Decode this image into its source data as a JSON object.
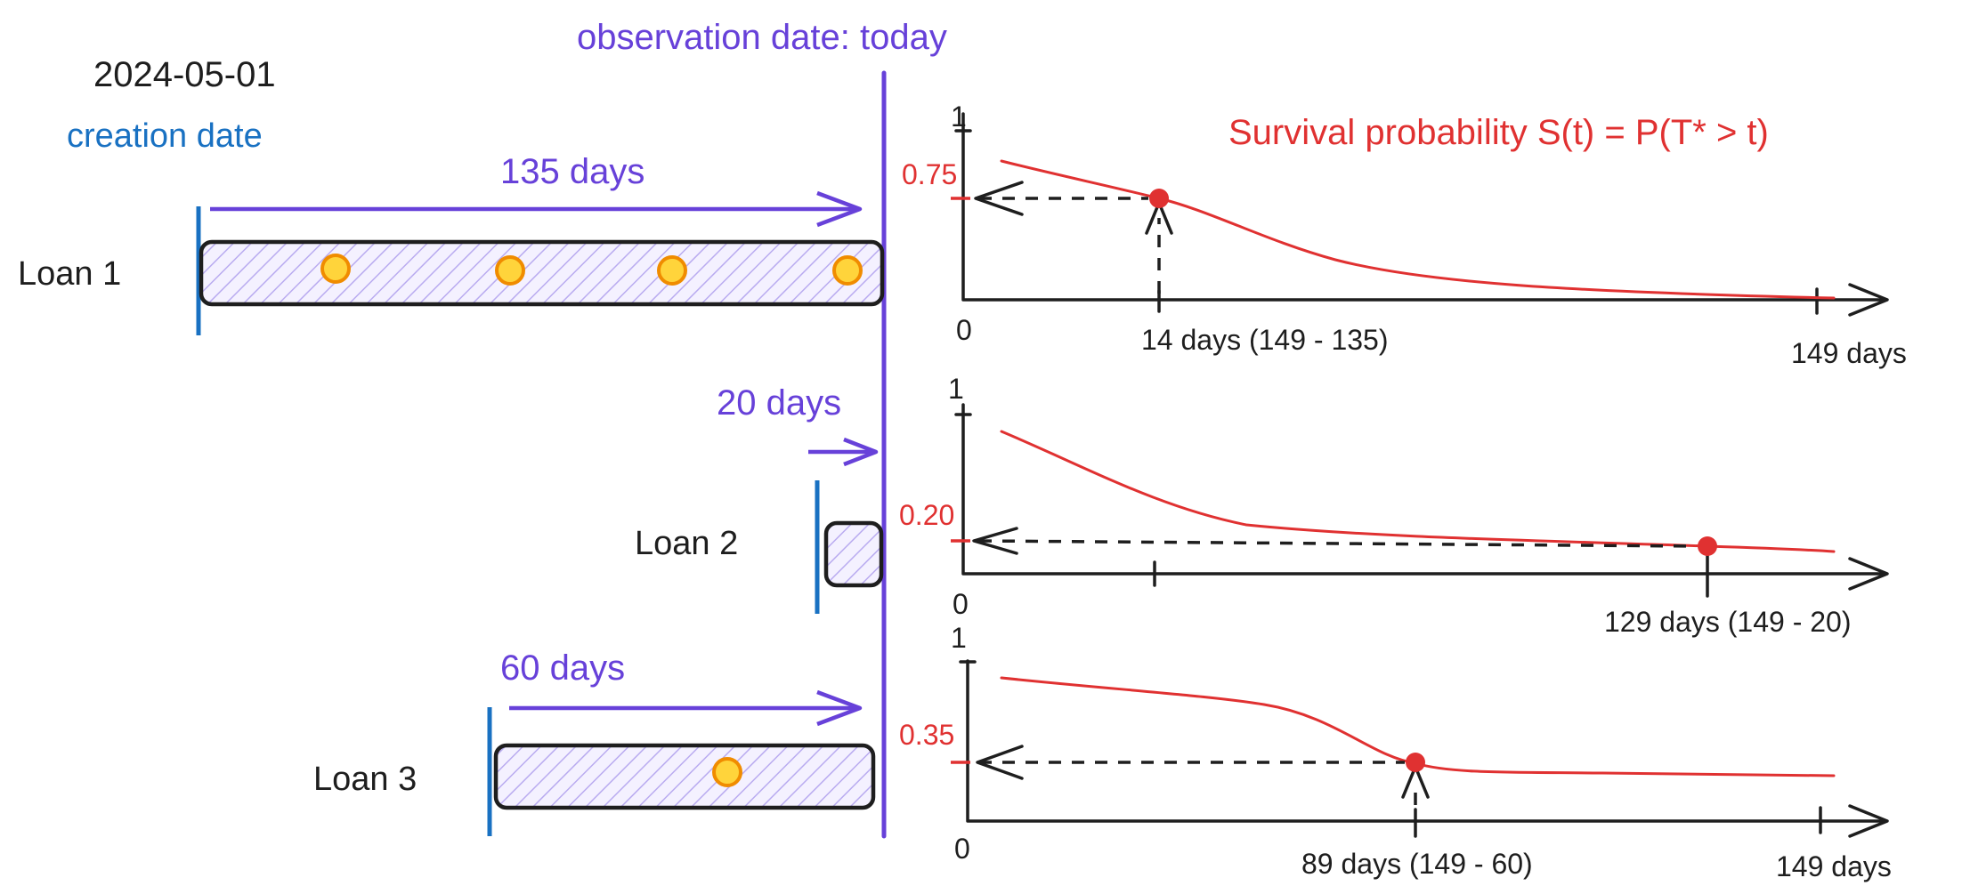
{
  "header": {
    "date": "2024-05-01",
    "creation_label": "creation date",
    "observation_label": "observation date: today"
  },
  "survival_title": "Survival probability S(t) = P(T* > t)",
  "colors": {
    "creation": "#1971c2",
    "observation": "#6741d9",
    "survival": "#e03131",
    "event_fill": "#ffd43b",
    "event_stroke": "#f08c00",
    "ink": "#1e1e1e",
    "hatch": "#b9abf0"
  },
  "icons": [
    "arrow-right-icon",
    "arrow-left-icon",
    "arrow-up-icon",
    "event-dot-icon"
  ],
  "loans": [
    {
      "label": "Loan 1",
      "duration_label": "135 days",
      "age_days": 135,
      "event_count": 4,
      "chart": {
        "y_top_label": "1",
        "origin_label": "0",
        "s_value_label": "0.75",
        "t_label": "14 days (149 - 135)",
        "end_label": "149 days"
      }
    },
    {
      "label": "Loan 2",
      "duration_label": "20 days",
      "age_days": 20,
      "event_count": 0,
      "chart": {
        "y_top_label": "1",
        "origin_label": "0",
        "s_value_label": "0.20",
        "t_label": "129 days (149 - 20)",
        "end_label": ""
      }
    },
    {
      "label": "Loan 3",
      "duration_label": "60 days",
      "age_days": 60,
      "event_count": 1,
      "chart": {
        "y_top_label": "1",
        "origin_label": "0",
        "s_value_label": "0.35",
        "t_label": "89 days (149 - 60)",
        "end_label": "149 days"
      }
    }
  ],
  "chart_data": [
    {
      "type": "line",
      "title": "",
      "x_max_days": 149,
      "ylim": [
        0,
        1
      ],
      "x": [
        14
      ],
      "y": [
        0.75
      ]
    },
    {
      "type": "line",
      "title": "",
      "x_max_days": 149,
      "ylim": [
        0,
        1
      ],
      "x": [
        129
      ],
      "y": [
        0.2
      ]
    },
    {
      "type": "line",
      "title": "",
      "x_max_days": 149,
      "ylim": [
        0,
        1
      ],
      "x": [
        89
      ],
      "y": [
        0.35
      ]
    }
  ]
}
